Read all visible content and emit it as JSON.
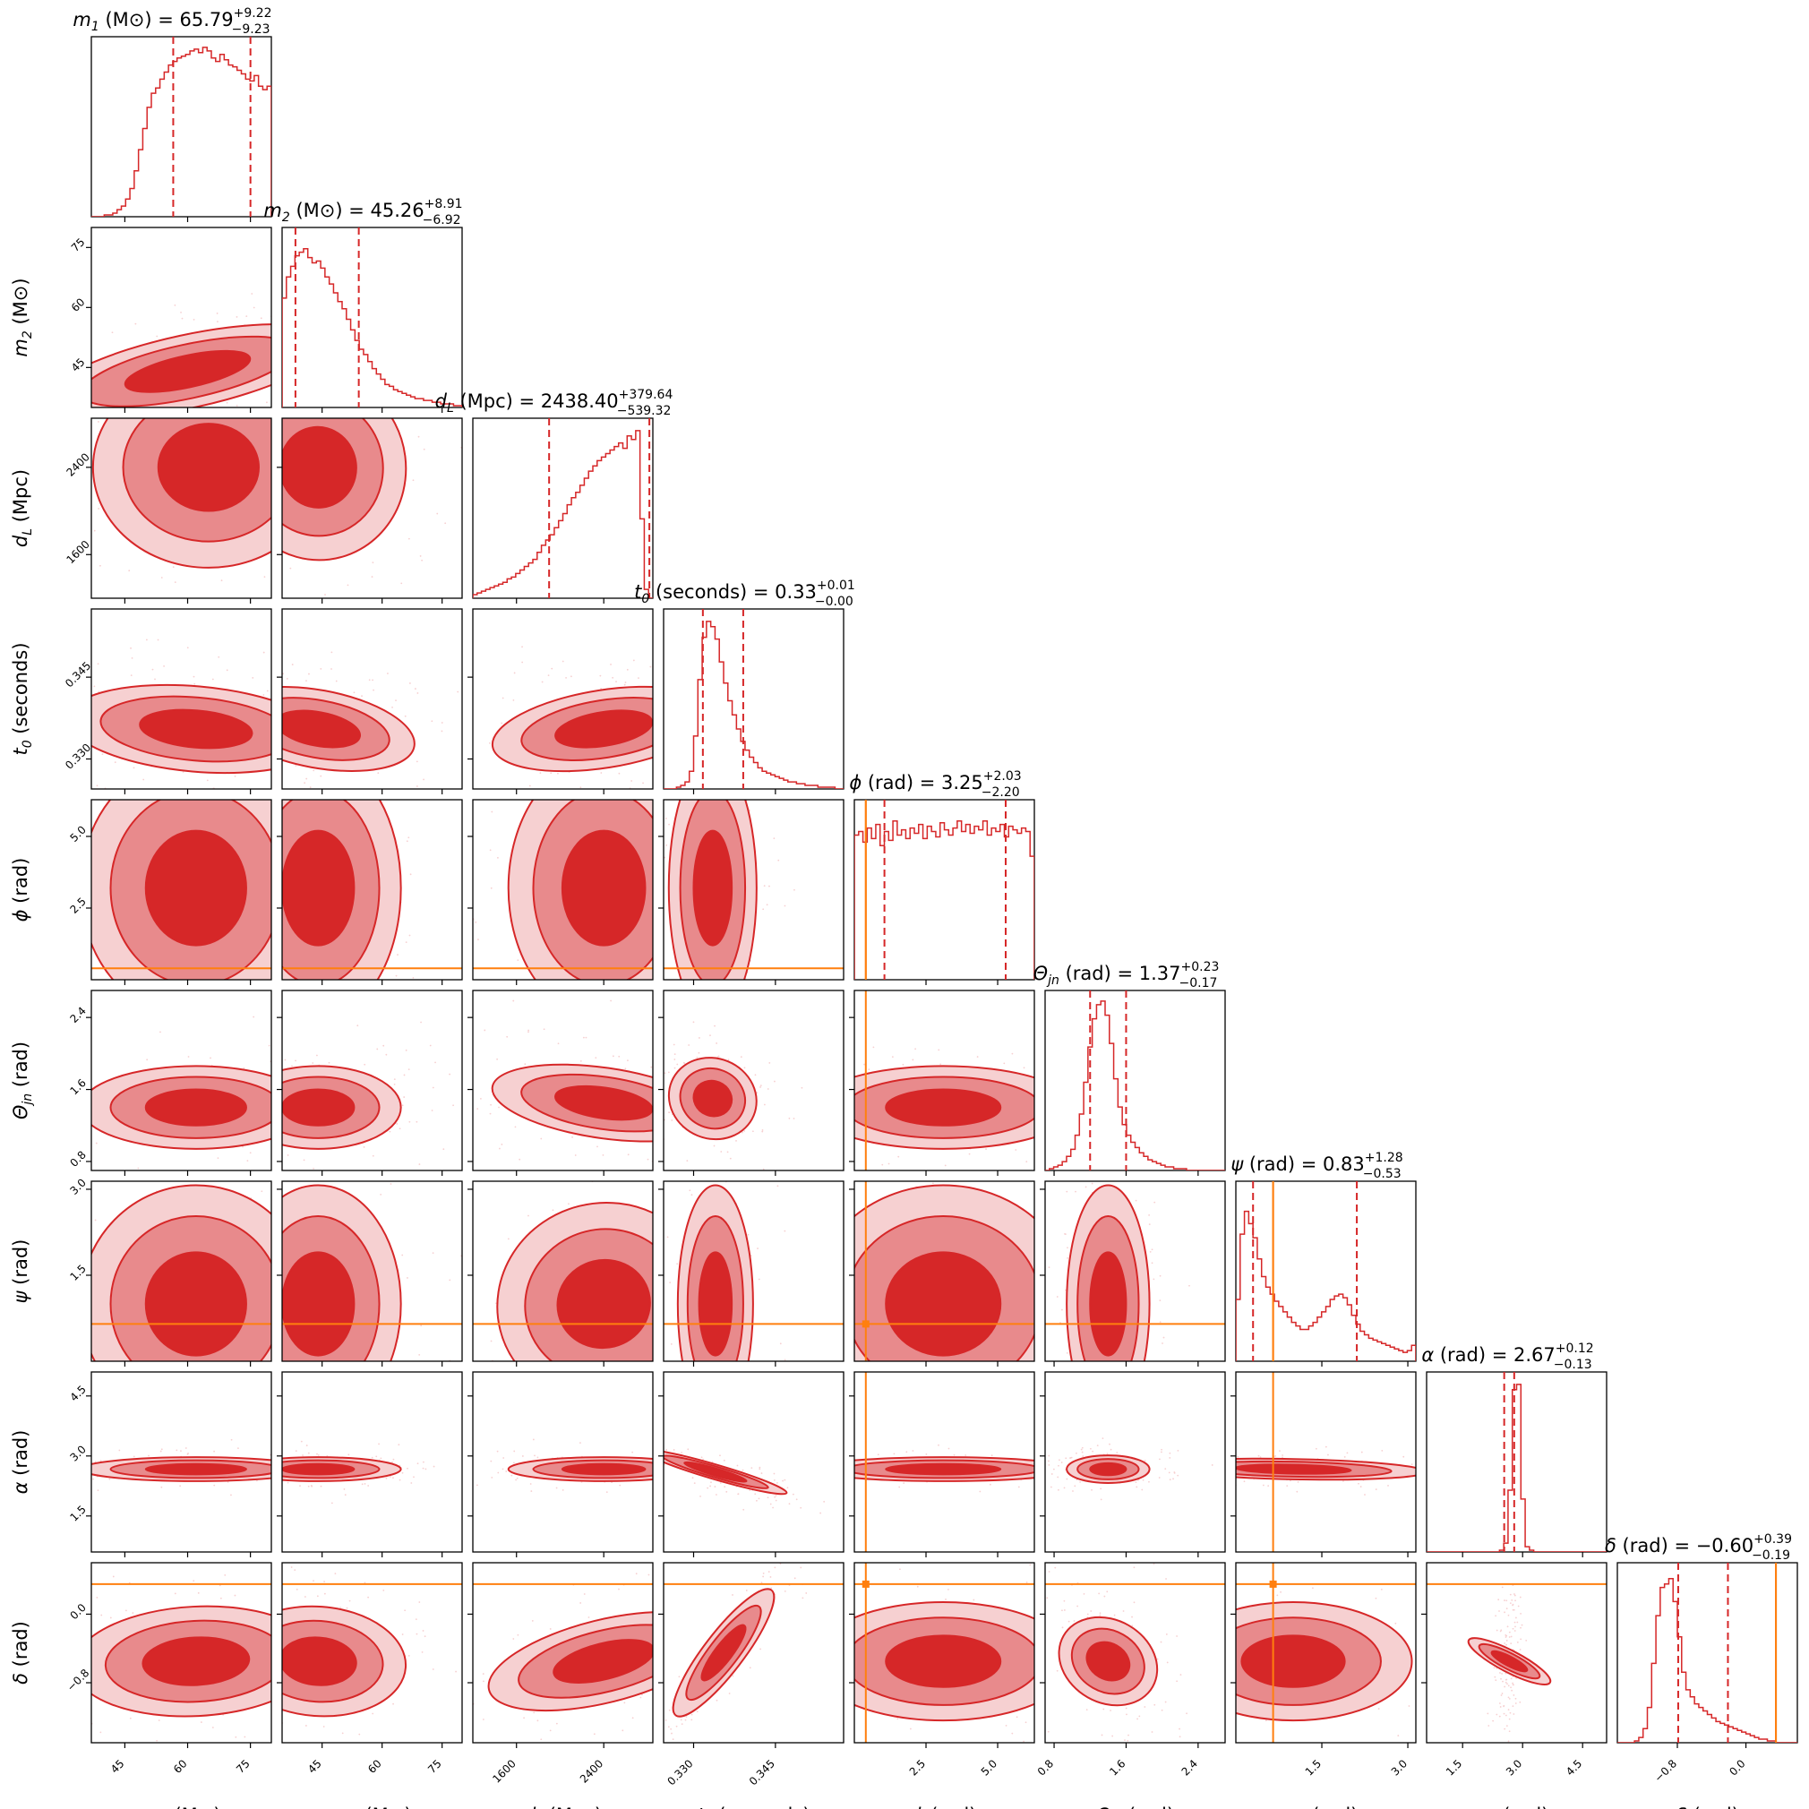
{
  "colors": {
    "main": "#d62728",
    "fill_inner": "#d62728",
    "fill_outer": "#e88a8c",
    "fill_faint": "#f6d0d1",
    "truth": "#ff7f0e"
  },
  "chart_data": {
    "type": "corner",
    "parameters": [
      {
        "key": "m1",
        "symbol": "m",
        "subscript": "1",
        "unit": "(M⊙)",
        "title_value": "65.79",
        "err_plus": "+9.22",
        "err_minus": "−9.23",
        "range": [
          37,
          80
        ],
        "ticks": [
          45,
          60,
          75
        ],
        "tick_labels": [
          "45",
          "60",
          "75"
        ],
        "median": 65.79,
        "q_low": 56.56,
        "q_high": 75.01,
        "truth": null,
        "hist": [
          0,
          0,
          0,
          0.01,
          0.01,
          0.02,
          0.04,
          0.06,
          0.1,
          0.16,
          0.26,
          0.38,
          0.5,
          0.62,
          0.7,
          0.73,
          0.78,
          0.82,
          0.86,
          0.88,
          0.9,
          0.91,
          0.92,
          0.94,
          0.95,
          0.93,
          0.96,
          0.94,
          0.9,
          0.88,
          0.92,
          0.89,
          0.86,
          0.85,
          0.83,
          0.81,
          0.78,
          0.77,
          0.8,
          0.74,
          0.72,
          0.74
        ]
      },
      {
        "key": "m2",
        "symbol": "m",
        "subscript": "2",
        "unit": "(M⊙)",
        "title_value": "45.26",
        "err_plus": "+8.91",
        "err_minus": "−6.92",
        "range": [
          35,
          80
        ],
        "ticks": [
          45,
          60,
          75
        ],
        "tick_labels": [
          "45",
          "60",
          "75"
        ],
        "median": 45.26,
        "q_low": 38.34,
        "q_high": 54.17,
        "truth": null,
        "hist": [
          0.62,
          0.74,
          0.8,
          0.86,
          0.88,
          0.9,
          0.85,
          0.82,
          0.83,
          0.79,
          0.74,
          0.7,
          0.65,
          0.6,
          0.56,
          0.5,
          0.44,
          0.38,
          0.33,
          0.3,
          0.26,
          0.22,
          0.19,
          0.16,
          0.13,
          0.12,
          0.1,
          0.09,
          0.08,
          0.07,
          0.06,
          0.05,
          0.05,
          0.04,
          0.04,
          0.03,
          0.03,
          0.02,
          0.02,
          0.02,
          0.01,
          0.01
        ]
      },
      {
        "key": "dL",
        "symbol": "d",
        "subscript": "L",
        "unit": "(Mpc)",
        "title_value": "2438.40",
        "err_plus": "+379.64",
        "err_minus": "−539.32",
        "range": [
          1200,
          2850
        ],
        "ticks": [
          1600,
          2400
        ],
        "tick_labels": [
          "1600",
          "2400"
        ],
        "median": 2438.4,
        "q_low": 1899.08,
        "q_high": 2818.04,
        "truth": null,
        "hist": [
          0.02,
          0.03,
          0.04,
          0.05,
          0.06,
          0.07,
          0.08,
          0.09,
          0.11,
          0.12,
          0.14,
          0.16,
          0.18,
          0.2,
          0.22,
          0.26,
          0.3,
          0.33,
          0.36,
          0.4,
          0.44,
          0.48,
          0.53,
          0.57,
          0.6,
          0.64,
          0.68,
          0.72,
          0.75,
          0.78,
          0.8,
          0.82,
          0.84,
          0.86,
          0.88,
          0.85,
          0.92,
          0.9,
          0.95,
          0.45,
          0.05,
          0.0
        ]
      },
      {
        "key": "t0",
        "symbol": "t",
        "subscript": "0",
        "unit": "(seconds)",
        "title_value": "0.33",
        "err_plus": "+0.01",
        "err_minus": "−0.00",
        "range": [
          0.3245,
          0.3575
        ],
        "ticks": [
          0.33,
          0.345
        ],
        "tick_labels": [
          "0.330",
          "0.345"
        ],
        "median": 0.3325,
        "q_low": 0.3317,
        "q_high": 0.3391,
        "truth": null,
        "hist": [
          0,
          0,
          0,
          0.01,
          0.02,
          0.04,
          0.1,
          0.3,
          0.62,
          0.86,
          0.95,
          0.92,
          0.85,
          0.72,
          0.6,
          0.5,
          0.42,
          0.34,
          0.27,
          0.22,
          0.18,
          0.15,
          0.12,
          0.1,
          0.09,
          0.08,
          0.07,
          0.06,
          0.05,
          0.04,
          0.04,
          0.03,
          0.03,
          0.02,
          0.02,
          0.02,
          0.01,
          0.01,
          0.01,
          0.01,
          0.0,
          0.0
        ]
      },
      {
        "key": "phi",
        "symbol": "ϕ",
        "subscript": "",
        "unit": "(rad)",
        "title_value": "3.25",
        "err_plus": "+2.03",
        "err_minus": "−2.20",
        "range": [
          0,
          6.28
        ],
        "ticks": [
          2.5,
          5.0
        ],
        "tick_labels": [
          "2.5",
          "5.0"
        ],
        "median": 3.25,
        "q_low": 1.05,
        "q_high": 5.28,
        "truth": 0.4,
        "hist": [
          0.82,
          0.84,
          0.78,
          0.86,
          0.8,
          0.88,
          0.76,
          0.84,
          0.79,
          0.9,
          0.82,
          0.85,
          0.8,
          0.86,
          0.83,
          0.88,
          0.8,
          0.87,
          0.84,
          0.81,
          0.89,
          0.85,
          0.82,
          0.86,
          0.9,
          0.84,
          0.88,
          0.83,
          0.87,
          0.85,
          0.9,
          0.82,
          0.86,
          0.84,
          0.88,
          0.81,
          0.87,
          0.85,
          0.83,
          0.86,
          0.84,
          0.7
        ]
      },
      {
        "key": "theta",
        "symbol": "Θ",
        "subscript": "jn",
        "unit": "(rad)",
        "title_value": "1.37",
        "err_plus": "+0.23",
        "err_minus": "−0.17",
        "range": [
          0.7,
          2.7
        ],
        "ticks": [
          0.8,
          1.6,
          2.4
        ],
        "tick_labels": [
          "0.8",
          "1.6",
          "2.4"
        ],
        "median": 1.37,
        "q_low": 1.2,
        "q_high": 1.6,
        "truth": null,
        "hist": [
          0.0,
          0.01,
          0.02,
          0.03,
          0.05,
          0.08,
          0.12,
          0.2,
          0.32,
          0.5,
          0.7,
          0.86,
          0.94,
          0.96,
          0.88,
          0.72,
          0.52,
          0.36,
          0.26,
          0.2,
          0.16,
          0.13,
          0.1,
          0.08,
          0.06,
          0.05,
          0.04,
          0.03,
          0.02,
          0.02,
          0.01,
          0.01,
          0.01,
          0.0,
          0.0,
          0.0,
          0.0,
          0.0,
          0.0,
          0.0,
          0.0,
          0.0
        ]
      },
      {
        "key": "psi",
        "symbol": "ψ",
        "subscript": "",
        "unit": "(rad)",
        "title_value": "0.83",
        "err_plus": "+1.28",
        "err_minus": "−0.53",
        "range": [
          0,
          3.14
        ],
        "ticks": [
          1.5,
          3.0
        ],
        "tick_labels": [
          "1.5",
          "3.0"
        ],
        "median": 0.83,
        "q_low": 0.3,
        "q_high": 2.11,
        "truth": 0.65,
        "hist": [
          0.35,
          0.72,
          0.85,
          0.78,
          0.7,
          0.58,
          0.48,
          0.42,
          0.38,
          0.34,
          0.31,
          0.28,
          0.25,
          0.22,
          0.2,
          0.18,
          0.18,
          0.2,
          0.22,
          0.25,
          0.28,
          0.31,
          0.35,
          0.37,
          0.38,
          0.36,
          0.32,
          0.26,
          0.21,
          0.17,
          0.15,
          0.13,
          0.12,
          0.11,
          0.1,
          0.09,
          0.08,
          0.07,
          0.06,
          0.05,
          0.06,
          0.09
        ]
      },
      {
        "key": "alpha",
        "symbol": "α",
        "subscript": "",
        "unit": "(rad)",
        "title_value": "2.67",
        "err_plus": "+0.12",
        "err_minus": "−0.13",
        "range": [
          0.6,
          5.1
        ],
        "ticks": [
          1.5,
          3.0,
          4.5
        ],
        "tick_labels": [
          "1.5",
          "3.0",
          "4.5"
        ],
        "median": 2.67,
        "q_low": 2.54,
        "q_high": 2.79,
        "truth": null,
        "hist": [
          0,
          0,
          0,
          0,
          0,
          0,
          0,
          0,
          0,
          0,
          0,
          0,
          0,
          0,
          0,
          0,
          0,
          0.01,
          0.05,
          0.35,
          0.92,
          0.95,
          0.3,
          0.03,
          0.01,
          0,
          0,
          0,
          0,
          0,
          0,
          0,
          0,
          0,
          0,
          0,
          0,
          0,
          0,
          0,
          0,
          0
        ]
      },
      {
        "key": "delta",
        "symbol": "δ",
        "subscript": "",
        "unit": "(rad)",
        "title_value": "−0.60",
        "err_plus": "+0.39",
        "err_minus": "−0.19",
        "range": [
          -1.5,
          0.6
        ],
        "ticks": [
          -0.8,
          0.0
        ],
        "tick_labels": [
          "−0.8",
          "0.0"
        ],
        "median": -0.6,
        "q_low": -0.79,
        "q_high": -0.21,
        "truth": 0.35,
        "hist": [
          0,
          0,
          0,
          0,
          0.01,
          0.03,
          0.08,
          0.2,
          0.45,
          0.72,
          0.88,
          0.9,
          0.93,
          0.8,
          0.6,
          0.4,
          0.3,
          0.26,
          0.22,
          0.2,
          0.18,
          0.16,
          0.14,
          0.12,
          0.11,
          0.1,
          0.09,
          0.08,
          0.07,
          0.06,
          0.05,
          0.04,
          0.03,
          0.02,
          0.02,
          0.01,
          0.01,
          0.0,
          0.0,
          0.0,
          0.0,
          0.0
        ]
      }
    ],
    "posterior_2d": [
      {
        "x": "m1",
        "y": "m2",
        "center": [
          60,
          44
        ],
        "spread": [
          12,
          6
        ],
        "rho": 0.45
      },
      {
        "x": "m1",
        "y": "dL",
        "center": [
          65,
          2400
        ],
        "spread": [
          12,
          400
        ],
        "rho": 0.0
      },
      {
        "x": "m2",
        "y": "dL",
        "center": [
          44,
          2400
        ],
        "spread": [
          9,
          400
        ],
        "rho": 0.1
      },
      {
        "x": "m1",
        "y": "t0",
        "center": [
          62,
          0.3355
        ],
        "spread": [
          12,
          0.004
        ],
        "rho": -0.2
      },
      {
        "x": "m2",
        "y": "t0",
        "center": [
          44,
          0.3355
        ],
        "spread": [
          9,
          0.004
        ],
        "rho": -0.3
      },
      {
        "x": "dL",
        "y": "t0",
        "center": [
          2400,
          0.3355
        ],
        "spread": [
          380,
          0.004
        ],
        "rho": 0.3
      },
      {
        "x": "m1",
        "y": "phi",
        "center": [
          62,
          3.2
        ],
        "spread": [
          12,
          2.0
        ],
        "rho": 0.0
      },
      {
        "x": "m2",
        "y": "phi",
        "center": [
          44,
          3.2
        ],
        "spread": [
          9,
          2.0
        ],
        "rho": 0.0
      },
      {
        "x": "dL",
        "y": "phi",
        "center": [
          2400,
          3.2
        ],
        "spread": [
          380,
          2.0
        ],
        "rho": 0.0
      },
      {
        "x": "t0",
        "y": "phi",
        "center": [
          0.3335,
          3.2
        ],
        "spread": [
          0.0035,
          2.0
        ],
        "rho": 0.0
      },
      {
        "x": "m1",
        "y": "theta",
        "center": [
          62,
          1.4
        ],
        "spread": [
          12,
          0.2
        ],
        "rho": 0.0
      },
      {
        "x": "m2",
        "y": "theta",
        "center": [
          44,
          1.4
        ],
        "spread": [
          9,
          0.2
        ],
        "rho": 0.0
      },
      {
        "x": "dL",
        "y": "theta",
        "center": [
          2400,
          1.45
        ],
        "spread": [
          380,
          0.22
        ],
        "rho": -0.3
      },
      {
        "x": "t0",
        "y": "theta",
        "center": [
          0.3335,
          1.5
        ],
        "spread": [
          0.003,
          0.25
        ],
        "rho": -0.3
      },
      {
        "x": "phi",
        "y": "theta",
        "center": [
          3.1,
          1.4
        ],
        "spread": [
          2.0,
          0.2
        ],
        "rho": 0.0
      },
      {
        "x": "m1",
        "y": "psi",
        "center": [
          62,
          1.0
        ],
        "spread": [
          12,
          0.9
        ],
        "rho": 0.0
      },
      {
        "x": "m2",
        "y": "psi",
        "center": [
          44,
          1.0
        ],
        "spread": [
          9,
          0.9
        ],
        "rho": 0.0
      },
      {
        "x": "dL",
        "y": "psi",
        "center": [
          2400,
          1.0
        ],
        "spread": [
          380,
          0.9
        ],
        "rho": 0.2
      },
      {
        "x": "t0",
        "y": "psi",
        "center": [
          0.334,
          1.0
        ],
        "spread": [
          0.003,
          0.9
        ],
        "rho": 0.0
      },
      {
        "x": "phi",
        "y": "psi",
        "center": [
          3.1,
          1.0
        ],
        "spread": [
          2.0,
          0.9
        ],
        "rho": 0.0
      },
      {
        "x": "theta",
        "y": "psi",
        "center": [
          1.4,
          1.0
        ],
        "spread": [
          0.2,
          0.9
        ],
        "rho": 0.0
      },
      {
        "x": "m1",
        "y": "alpha",
        "center": [
          62,
          2.67
        ],
        "spread": [
          12,
          0.13
        ],
        "rho": 0.0
      },
      {
        "x": "m2",
        "y": "alpha",
        "center": [
          44,
          2.67
        ],
        "spread": [
          9,
          0.13
        ],
        "rho": 0.0
      },
      {
        "x": "dL",
        "y": "alpha",
        "center": [
          2400,
          2.67
        ],
        "spread": [
          380,
          0.13
        ],
        "rho": 0.0
      },
      {
        "x": "t0",
        "y": "alpha",
        "center": [
          0.334,
          2.6
        ],
        "spread": [
          0.004,
          0.2
        ],
        "rho": -0.8
      },
      {
        "x": "phi",
        "y": "alpha",
        "center": [
          3.1,
          2.67
        ],
        "spread": [
          2.0,
          0.13
        ],
        "rho": 0.0
      },
      {
        "x": "theta",
        "y": "alpha",
        "center": [
          1.4,
          2.67
        ],
        "spread": [
          0.2,
          0.15
        ],
        "rho": 0.0
      },
      {
        "x": "psi",
        "y": "alpha",
        "center": [
          1.0,
          2.67
        ],
        "spread": [
          0.9,
          0.13
        ],
        "rho": -0.2
      },
      {
        "x": "m1",
        "y": "delta",
        "center": [
          62,
          -0.55
        ],
        "spread": [
          12,
          0.3
        ],
        "rho": 0.1
      },
      {
        "x": "m2",
        "y": "delta",
        "center": [
          44,
          -0.55
        ],
        "spread": [
          9,
          0.3
        ],
        "rho": -0.1
      },
      {
        "x": "dL",
        "y": "delta",
        "center": [
          2400,
          -0.55
        ],
        "spread": [
          380,
          0.3
        ],
        "rho": 0.4
      },
      {
        "x": "t0",
        "y": "delta",
        "center": [
          0.3355,
          -0.45
        ],
        "spread": [
          0.004,
          0.35
        ],
        "rho": 0.95
      },
      {
        "x": "phi",
        "y": "delta",
        "center": [
          3.1,
          -0.55
        ],
        "spread": [
          2.0,
          0.3
        ],
        "rho": 0.0
      },
      {
        "x": "theta",
        "y": "delta",
        "center": [
          1.4,
          -0.55
        ],
        "spread": [
          0.2,
          0.3
        ],
        "rho": -0.4
      },
      {
        "x": "psi",
        "y": "delta",
        "center": [
          1.0,
          -0.55
        ],
        "spread": [
          0.9,
          0.3
        ],
        "rho": 0.0
      },
      {
        "x": "alpha",
        "y": "delta",
        "center": [
          2.67,
          -0.55
        ],
        "spread": [
          0.1,
          0.3
        ],
        "rho": 0.3
      }
    ]
  }
}
